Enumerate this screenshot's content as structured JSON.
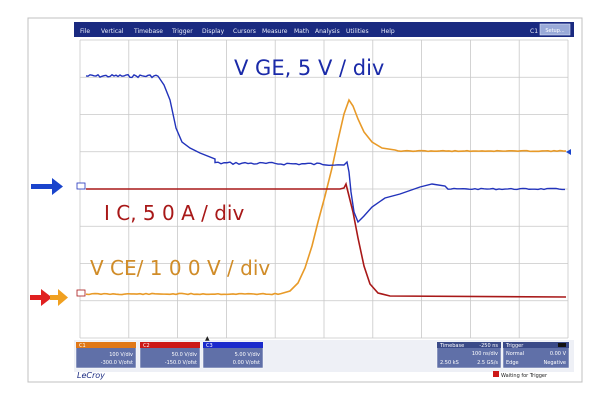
{
  "menu": {
    "items": [
      "File",
      "Vertical",
      "Timebase",
      "Trigger",
      "Display",
      "Cursors",
      "Measure",
      "Math",
      "Analysis",
      "Utilities",
      "Help"
    ],
    "channel_indicator": "C1",
    "setup_label": "Setup..."
  },
  "annotations": {
    "vge": "V GE, 5 V / div",
    "ic": "I C, 5 0 A / div",
    "vce": "V CE/ 1 0 0 V / div"
  },
  "colors": {
    "background": "#ffffff",
    "menubar": "#1a2a80",
    "grid": "#c8c8c8",
    "ch1_vge": "#2233bb",
    "ch2_ic": "#a81818",
    "ch3_vce": "#e89a28",
    "arrow_blue": "#1a44cc",
    "arrow_red": "#e02020",
    "arrow_orange": "#f0a020"
  },
  "channel_markers": {
    "blue": "C3",
    "red": "C2",
    "orange": "C1"
  },
  "channel_boxes": [
    {
      "name": "C1",
      "vdiv": "100 V/div",
      "offset": "-300.0 V/ofst",
      "color": "#e07818"
    },
    {
      "name": "C2",
      "vdiv": "50.0 V/div",
      "offset": "-150.0 V/ofst",
      "color": "#cc1818"
    },
    {
      "name": "C3",
      "vdiv": "5.00 V/div",
      "offset": "0.00 V/ofst",
      "color": "#1a2acc"
    }
  ],
  "timebase": {
    "label": "Timebase",
    "value": "-250 ns",
    "rate": "100 ns/div",
    "samples": "2.50 kS",
    "srate": "2.5 GS/s"
  },
  "trigger": {
    "label": "Trigger",
    "mode": "Normal",
    "level": "0.00 V",
    "edge": "Edge",
    "slope": "Negative"
  },
  "brand": "LeCroy",
  "status": "Waiting for Trigger"
}
